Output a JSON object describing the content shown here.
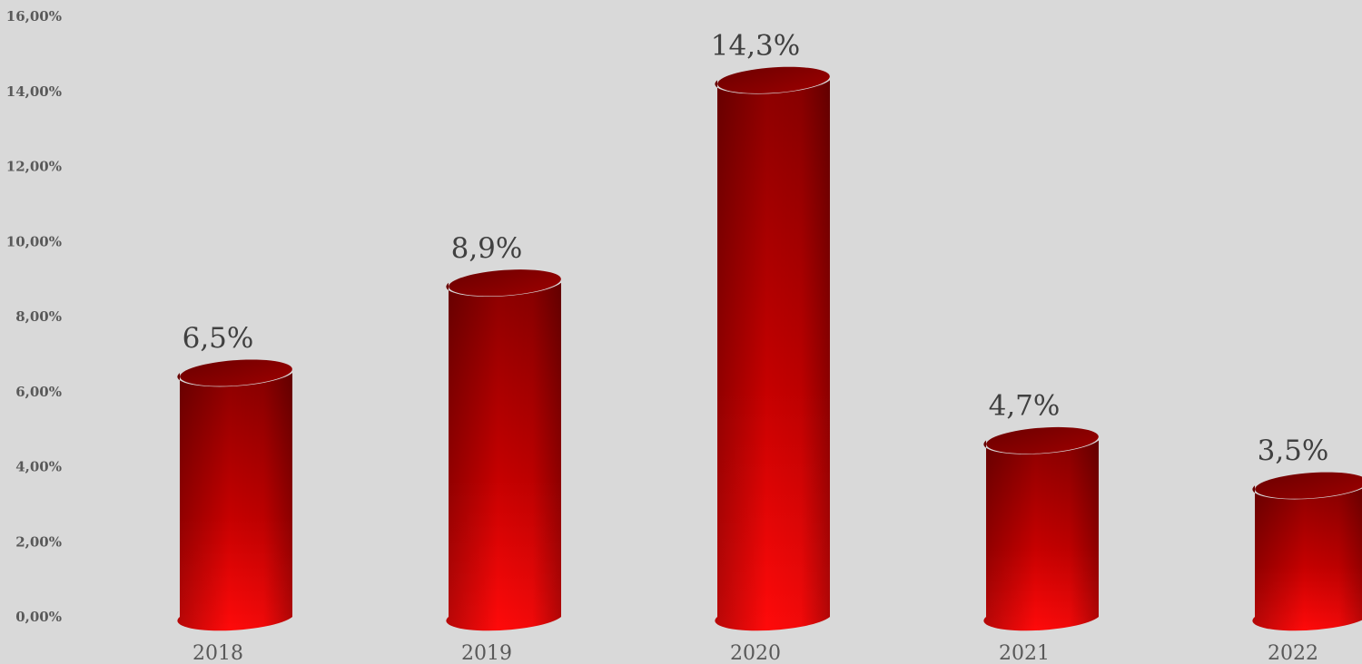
{
  "chart_data": {
    "type": "bar",
    "style": "3d-cylinder",
    "categories": [
      "2018",
      "2019",
      "2020",
      "2021",
      "2022"
    ],
    "values": [
      6.5,
      8.9,
      14.3,
      4.7,
      3.5
    ],
    "data_labels": [
      "6,5%",
      "8,9%",
      "14,3%",
      "4,7%",
      "3,5%"
    ],
    "y_ticks": [
      0,
      2,
      4,
      6,
      8,
      10,
      12,
      14,
      16
    ],
    "y_tick_labels": [
      "0,00%",
      "2,00%",
      "4,00%",
      "6,00%",
      "8,00%",
      "10,00%",
      "12,00%",
      "14,00%",
      "16,00%"
    ],
    "ylim": [
      0,
      16
    ],
    "title": "",
    "xlabel": "",
    "ylabel": "",
    "grid": false,
    "legend": "none",
    "colors": {
      "bar": "#e60000",
      "bar_dark": "#8c0000",
      "background": "#d9d9d9",
      "axis_text": "#595959",
      "label_text": "#404040"
    }
  }
}
